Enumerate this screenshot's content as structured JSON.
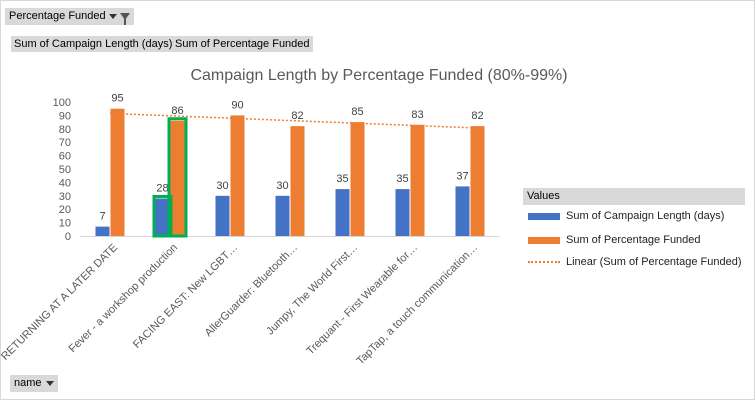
{
  "filters": {
    "report_filter_label": "Percentage Funded",
    "value_fields": [
      "Sum of Campaign Length (days)",
      "Sum of Percentage Funded"
    ],
    "row_field_label": "name"
  },
  "legend": {
    "title": "Values",
    "items": [
      {
        "label": "Sum of Campaign Length (days)",
        "color": "#4472c4",
        "style": "solid"
      },
      {
        "label": "Sum of Percentage Funded",
        "color": "#ed7d31",
        "style": "solid"
      },
      {
        "label": "Linear (Sum of Percentage Funded)",
        "color": "#ed7d31",
        "style": "dotted"
      }
    ]
  },
  "chart_data": {
    "type": "bar",
    "title": "Campaign Length by Percentage Funded (80%-99%)",
    "categories": [
      "RETURNING AT A LATER DATE",
      "Fever - a workshop production",
      "FACING EAST: New LGBT…",
      "AllerGuarder: Bluetooth…",
      "Jumpy, The World First…",
      "Trequant - First Wearable for…",
      "TapTap, a touch communication…"
    ],
    "series": [
      {
        "name": "Sum of Campaign Length (days)",
        "color": "#4472c4",
        "values": [
          7,
          28,
          30,
          30,
          35,
          35,
          37
        ]
      },
      {
        "name": "Sum of Percentage Funded",
        "color": "#ed7d31",
        "values": [
          95,
          86,
          90,
          82,
          85,
          83,
          82
        ]
      }
    ],
    "trendline": {
      "name": "Linear (Sum of Percentage Funded)",
      "series": "Sum of Percentage Funded",
      "type": "linear",
      "color": "#ed7d31"
    },
    "yticks": [
      0,
      10,
      20,
      30,
      40,
      50,
      60,
      70,
      80,
      90,
      100
    ],
    "ylim": [
      0,
      100
    ],
    "highlighted_category": "Fever - a workshop production",
    "highlight_color": "#00b050",
    "grid": false,
    "legend_position": "right"
  }
}
